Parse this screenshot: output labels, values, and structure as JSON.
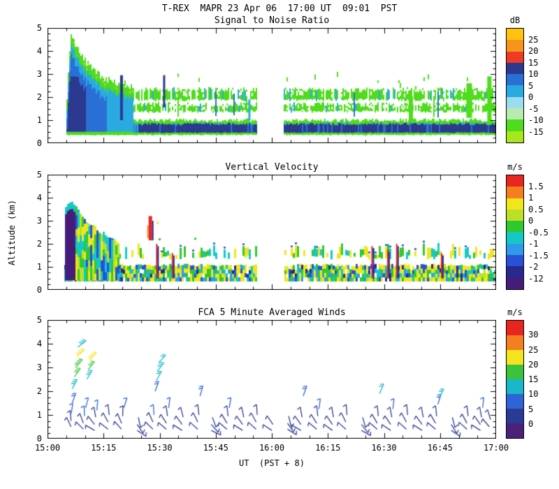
{
  "figure": {
    "title": "T-REX  MAPR 23 Apr 06  17:00 UT  09:01  PST",
    "xlabel": "UT  (PST + 8)",
    "ylabel": "Altitude (km)",
    "x_tick_labels": [
      "15:00",
      "15:15",
      "15:30",
      "15:45",
      "16:00",
      "16:15",
      "16:30",
      "16:45",
      "17:00"
    ],
    "y_tick_labels": [
      "0",
      "1",
      "2",
      "3",
      "4",
      "5"
    ],
    "background": "#FFFFFF",
    "axis_color": "#000000"
  },
  "chart_data": [
    {
      "type": "heatmap",
      "title": "Signal to Noise Ratio",
      "x_range_hours": [
        15,
        17
      ],
      "ylim": [
        0,
        5
      ],
      "colorbar": {
        "units": "dB",
        "tick_labels": [
          "25",
          "20",
          "15",
          "10",
          "5",
          "0",
          "-5",
          "-10",
          "-15"
        ],
        "colors_top_to_bottom": [
          "#FFC20E",
          "#F7941D",
          "#EF3A24",
          "#2B3990",
          "#2A6FD6",
          "#29ABE2",
          "#9BDCF0",
          "#B8EBB0",
          "#4FDC1C",
          "#A8E61E"
        ]
      },
      "render": {
        "seed": 7,
        "data_start": 15.09,
        "data_end": 17.0,
        "gap": [
          15.93,
          16.05
        ],
        "low_band": {
          "base": 0.36,
          "top": 1.0,
          "core": [
            0.46,
            0.84
          ]
        },
        "mid_layers": [
          [
            1.38,
            1.68
          ],
          [
            1.88,
            2.32
          ]
        ],
        "plume_profile": [
          [
            15.08,
            1.2
          ],
          [
            15.1,
            4.65
          ],
          [
            15.13,
            4.15
          ],
          [
            15.17,
            3.5
          ],
          [
            15.22,
            3.0
          ],
          [
            15.3,
            2.6
          ],
          [
            15.38,
            2.4
          ]
        ],
        "streaks": [
          [
            15.33,
            1.0,
            2.95,
            "navy",
            4
          ],
          [
            15.52,
            1.55,
            2.95,
            "navy",
            3
          ],
          [
            15.9,
            1.0,
            1.9,
            "cyan",
            3
          ],
          [
            16.62,
            1.0,
            2.05,
            "green",
            6
          ],
          [
            16.88,
            1.1,
            2.6,
            "green",
            8
          ],
          [
            16.97,
            0.8,
            2.9,
            "green",
            6
          ]
        ],
        "colors": {
          "green": "#4FDC1C",
          "lightgreen": "#A8E61E",
          "cyan": "#29ABE2",
          "blue": "#2A6FD6",
          "navy": "#2B3990",
          "pale": "#9BDCF0",
          "white": "#FFFFFF"
        }
      }
    },
    {
      "type": "heatmap",
      "title": "Vertical Velocity",
      "x_range_hours": [
        15,
        17
      ],
      "ylim": [
        0,
        5
      ],
      "colorbar": {
        "units": "m/s",
        "tick_labels": [
          "1.5",
          "1",
          "0.5",
          "0",
          "-0.5",
          "-1",
          "-1.5",
          "-2",
          "-12"
        ],
        "colors_top_to_bottom": [
          "#E8251F",
          "#F57E20",
          "#F0E61C",
          "#BCE028",
          "#2FC82F",
          "#14C8C8",
          "#2E9BE8",
          "#2851D8",
          "#28288F",
          "#451C78"
        ]
      },
      "render": {
        "seed": 11,
        "data_start": 15.07,
        "data_end": 17.0,
        "gap": [
          15.93,
          16.05
        ],
        "low_band": {
          "base": 0.38,
          "top": 1.08
        },
        "mid_band": {
          "base": 1.42,
          "top": 1.95,
          "coverage_left": 0.38,
          "coverage_right": 0.72
        },
        "plume_profile": [
          [
            15.07,
            3.3
          ],
          [
            15.09,
            3.9
          ],
          [
            15.12,
            3.6
          ],
          [
            15.16,
            3.1
          ],
          [
            15.2,
            2.75
          ],
          [
            15.26,
            2.35
          ],
          [
            15.32,
            2.05
          ]
        ],
        "core_end": 15.12,
        "updrafts": [
          [
            15.46,
            2.15,
            3.2
          ]
        ],
        "streaks": [
          [
            15.49,
            0.5,
            2.0
          ],
          [
            15.56,
            0.5,
            1.6
          ],
          [
            16.45,
            0.5,
            1.9
          ],
          [
            16.52,
            0.5,
            1.75
          ],
          [
            16.56,
            0.5,
            2.0
          ],
          [
            16.76,
            0.5,
            1.6
          ]
        ],
        "colors": {
          "yellow": "#F0E61C",
          "ygreen": "#BCE028",
          "green": "#2FC82F",
          "cyan": "#14C8C8",
          "lblue": "#2E9BE8",
          "blue": "#2851D8",
          "navy": "#28288F",
          "purple": "#451C78",
          "red": "#E8251F",
          "orange": "#F57E20",
          "white": "#FFFFFF"
        }
      }
    },
    {
      "type": "scatter",
      "title": "FCA 5 Minute Averaged Winds",
      "x_range_hours": [
        15,
        17
      ],
      "ylim": [
        0,
        5
      ],
      "colorbar": {
        "units": "m/s",
        "tick_labels": [
          "30",
          "25",
          "20",
          "15",
          "10",
          "5",
          "0"
        ],
        "colors_top_to_bottom": [
          "#E8251F",
          "#F57E20",
          "#F2E51F",
          "#3CC23C",
          "#18B7C9",
          "#2E64D6",
          "#2B3A94",
          "#4B2178"
        ]
      },
      "barb_format": [
        "time_hours_ut",
        "altitude_km",
        "speed_ms",
        "direction_deg"
      ],
      "barbs": [
        [
          15.105,
          0.5,
          3,
          115
        ],
        [
          15.105,
          0.75,
          4,
          95
        ],
        [
          15.105,
          1.05,
          6,
          80
        ],
        [
          15.11,
          1.5,
          9,
          70
        ],
        [
          15.11,
          2.1,
          13,
          62
        ],
        [
          15.12,
          2.6,
          16,
          55
        ],
        [
          15.125,
          3.0,
          19,
          48
        ],
        [
          15.13,
          3.45,
          22,
          42
        ],
        [
          15.135,
          3.85,
          13,
          38
        ],
        [
          15.16,
          0.4,
          3,
          135
        ],
        [
          15.16,
          0.65,
          3,
          110
        ],
        [
          15.165,
          0.95,
          5,
          92
        ],
        [
          15.17,
          1.3,
          6,
          75
        ],
        [
          15.175,
          2.5,
          14,
          58
        ],
        [
          15.18,
          2.9,
          17,
          50
        ],
        [
          15.185,
          3.3,
          20,
          44
        ],
        [
          15.21,
          0.35,
          2,
          150
        ],
        [
          15.21,
          0.6,
          3,
          128
        ],
        [
          15.215,
          0.9,
          4,
          100
        ],
        [
          15.22,
          1.2,
          5,
          85
        ],
        [
          15.27,
          0.4,
          2,
          142
        ],
        [
          15.27,
          0.7,
          3,
          118
        ],
        [
          15.275,
          1.0,
          4,
          96
        ],
        [
          15.33,
          0.4,
          3,
          132
        ],
        [
          15.33,
          0.65,
          3,
          112
        ],
        [
          15.335,
          0.95,
          4,
          88
        ],
        [
          15.34,
          1.3,
          5,
          72
        ],
        [
          15.4,
          0.35,
          2,
          326
        ],
        [
          15.4,
          0.6,
          3,
          304
        ],
        [
          15.405,
          0.9,
          4,
          282
        ],
        [
          15.47,
          0.4,
          3,
          136
        ],
        [
          15.47,
          0.7,
          4,
          114
        ],
        [
          15.475,
          1.0,
          5,
          94
        ],
        [
          15.48,
          2.0,
          9,
          70
        ],
        [
          15.485,
          2.45,
          12,
          60
        ],
        [
          15.49,
          2.85,
          14,
          52
        ],
        [
          15.495,
          3.2,
          11,
          46
        ],
        [
          15.53,
          0.4,
          2,
          140
        ],
        [
          15.53,
          0.65,
          3,
          122
        ],
        [
          15.535,
          0.95,
          4,
          98
        ],
        [
          15.54,
          1.3,
          5,
          82
        ],
        [
          15.6,
          0.35,
          2,
          148
        ],
        [
          15.6,
          0.6,
          3,
          126
        ],
        [
          15.605,
          0.9,
          4,
          104
        ],
        [
          15.67,
          0.4,
          2,
          138
        ],
        [
          15.67,
          0.7,
          3,
          116
        ],
        [
          15.675,
          1.0,
          4,
          96
        ],
        [
          15.68,
          1.8,
          8,
          74
        ],
        [
          15.73,
          0.35,
          2,
          334
        ],
        [
          15.73,
          0.6,
          3,
          312
        ],
        [
          15.735,
          0.9,
          4,
          290
        ],
        [
          15.8,
          0.4,
          2,
          140
        ],
        [
          15.8,
          0.65,
          3,
          120
        ],
        [
          15.805,
          0.95,
          4,
          96
        ],
        [
          15.81,
          1.3,
          5,
          80
        ],
        [
          15.87,
          0.35,
          2,
          148
        ],
        [
          15.87,
          0.6,
          3,
          126
        ],
        [
          15.875,
          0.9,
          4,
          102
        ],
        [
          15.93,
          0.4,
          2,
          138
        ],
        [
          15.93,
          0.7,
          3,
          118
        ],
        [
          15.935,
          1.0,
          4,
          94
        ],
        [
          16.0,
          0.35,
          2,
          146
        ],
        [
          16.005,
          0.6,
          3,
          124
        ],
        [
          16.07,
          0.4,
          2,
          328
        ],
        [
          16.07,
          0.65,
          3,
          306
        ],
        [
          16.075,
          0.95,
          4,
          284
        ],
        [
          16.13,
          0.35,
          2,
          150
        ],
        [
          16.13,
          0.6,
          3,
          126
        ],
        [
          16.135,
          0.9,
          4,
          100
        ],
        [
          16.14,
          1.8,
          9,
          70
        ],
        [
          16.2,
          0.4,
          2,
          140
        ],
        [
          16.2,
          0.65,
          3,
          122
        ],
        [
          16.205,
          0.95,
          4,
          96
        ],
        [
          16.21,
          1.25,
          5,
          82
        ],
        [
          16.27,
          0.35,
          2,
          144
        ],
        [
          16.27,
          0.6,
          3,
          124
        ],
        [
          16.275,
          0.9,
          4,
          100
        ],
        [
          16.33,
          0.4,
          2,
          138
        ],
        [
          16.33,
          0.7,
          3,
          116
        ],
        [
          16.335,
          1.0,
          4,
          94
        ],
        [
          16.4,
          0.35,
          2,
          330
        ],
        [
          16.4,
          0.6,
          3,
          308
        ],
        [
          16.405,
          0.9,
          4,
          286
        ],
        [
          16.47,
          0.4,
          2,
          140
        ],
        [
          16.47,
          0.65,
          3,
          120
        ],
        [
          16.475,
          0.95,
          4,
          96
        ],
        [
          16.48,
          1.9,
          10,
          66
        ],
        [
          16.53,
          0.35,
          2,
          146
        ],
        [
          16.53,
          0.6,
          3,
          124
        ],
        [
          16.535,
          0.9,
          4,
          100
        ],
        [
          16.54,
          1.25,
          5,
          84
        ],
        [
          16.6,
          0.4,
          2,
          138
        ],
        [
          16.6,
          0.7,
          3,
          118
        ],
        [
          16.605,
          1.0,
          4,
          94
        ],
        [
          16.67,
          0.35,
          2,
          148
        ],
        [
          16.67,
          0.6,
          3,
          126
        ],
        [
          16.675,
          0.9,
          4,
          100
        ],
        [
          16.73,
          0.4,
          2,
          140
        ],
        [
          16.73,
          0.65,
          3,
          120
        ],
        [
          16.735,
          0.95,
          4,
          96
        ],
        [
          16.74,
          1.45,
          8,
          72
        ],
        [
          16.745,
          1.7,
          12,
          62
        ],
        [
          16.8,
          0.35,
          2,
          326
        ],
        [
          16.8,
          0.6,
          3,
          302
        ],
        [
          16.805,
          0.9,
          4,
          284
        ],
        [
          16.87,
          0.4,
          2,
          138
        ],
        [
          16.87,
          0.65,
          3,
          118
        ],
        [
          16.875,
          0.95,
          4,
          96
        ],
        [
          16.93,
          0.35,
          2,
          148
        ],
        [
          16.93,
          0.6,
          3,
          126
        ],
        [
          16.935,
          0.9,
          4,
          100
        ],
        [
          16.94,
          1.3,
          5,
          84
        ],
        [
          16.97,
          0.5,
          3,
          130
        ],
        [
          16.975,
          0.8,
          4,
          106
        ]
      ]
    }
  ]
}
